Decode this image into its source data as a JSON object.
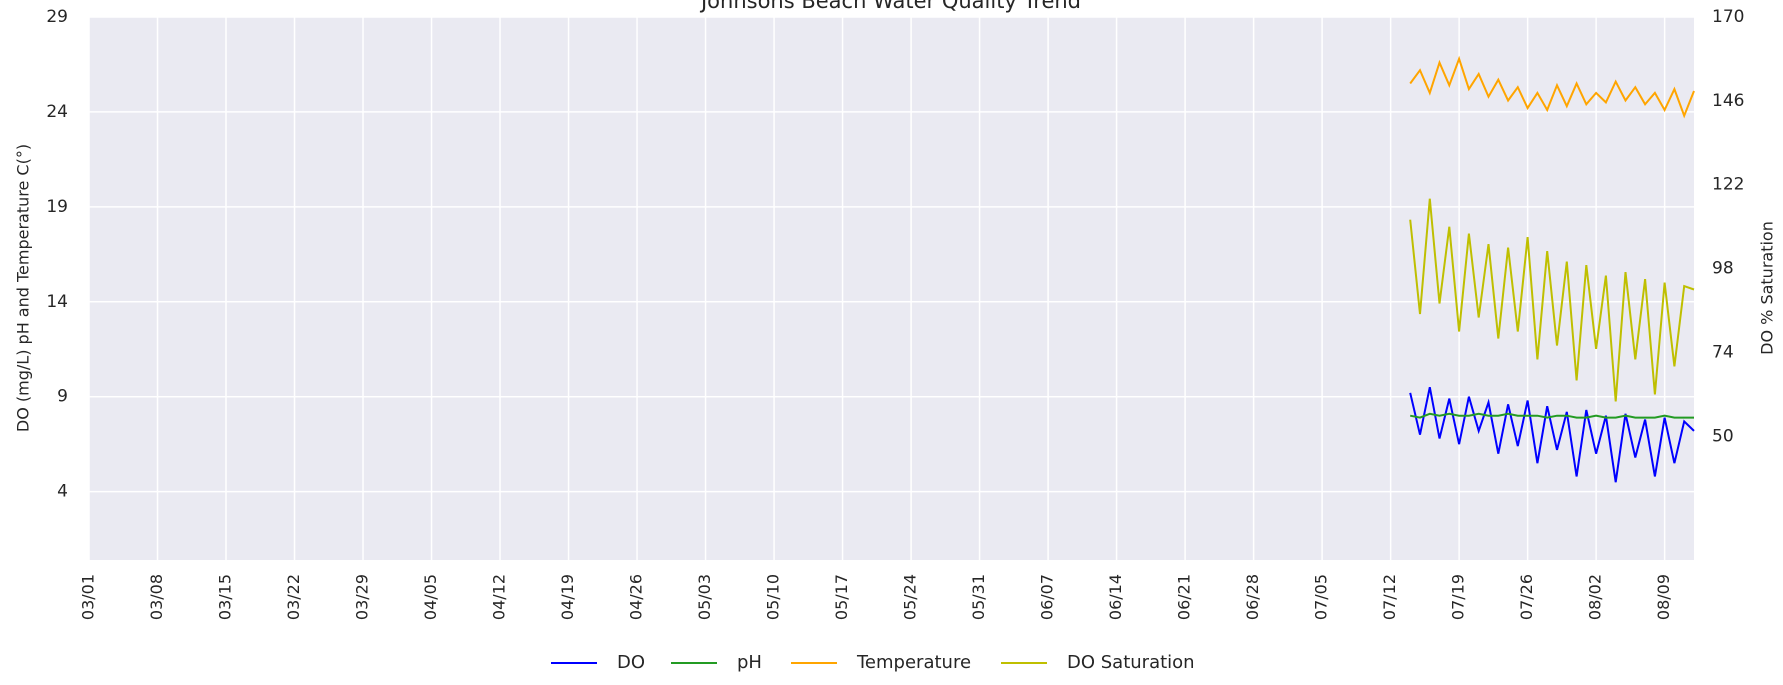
{
  "chart_data": {
    "type": "line",
    "title": "Johnsons Beach Water Quality Trend",
    "ylabel": "DO (mg/L) pH and Temperature C(°)",
    "y2label": "DO % Saturation",
    "x": [
      "07/14",
      "07/15",
      "07/16",
      "07/17",
      "07/18",
      "07/19",
      "07/20",
      "07/21",
      "07/22",
      "07/23",
      "07/24",
      "07/25",
      "07/26",
      "07/27",
      "07/28",
      "07/29",
      "07/30",
      "07/31",
      "08/01",
      "08/02",
      "08/03",
      "08/04",
      "08/05",
      "08/06",
      "08/07",
      "08/08",
      "08/09",
      "08/10",
      "08/11",
      "08/12"
    ],
    "xlim": [
      "03/01",
      "08/12"
    ],
    "xticks": [
      "03/01",
      "03/08",
      "03/15",
      "03/22",
      "03/29",
      "04/05",
      "04/12",
      "04/19",
      "04/26",
      "05/03",
      "05/10",
      "05/17",
      "05/24",
      "05/31",
      "06/07",
      "06/14",
      "06/21",
      "06/28",
      "07/05",
      "07/12",
      "07/19",
      "07/26",
      "08/02",
      "08/09"
    ],
    "ylim": [
      0.4,
      29
    ],
    "yticks": [
      4,
      9,
      14,
      19,
      24,
      29
    ],
    "y2lim": [
      14.6,
      170
    ],
    "y2ticks": [
      50,
      74,
      98,
      122,
      146,
      170
    ],
    "grid": true,
    "legend": "bottom",
    "series": [
      {
        "name": "DO",
        "color": "#0000ff",
        "values": [
          9.2,
          7.0,
          9.5,
          6.8,
          8.9,
          6.5,
          9.0,
          7.2,
          8.7,
          6.0,
          8.6,
          6.4,
          8.8,
          5.5,
          8.5,
          6.2,
          8.2,
          4.8,
          8.3,
          6.0,
          8.0,
          4.5,
          8.1,
          5.8,
          7.8,
          4.8,
          7.9,
          5.5,
          7.7,
          7.2
        ]
      },
      {
        "name": "pH",
        "color": "#239b23",
        "values": [
          8.0,
          7.9,
          8.1,
          8.0,
          8.1,
          8.0,
          8.0,
          8.1,
          8.0,
          8.0,
          8.1,
          8.0,
          8.0,
          8.0,
          7.9,
          8.0,
          8.0,
          7.9,
          7.9,
          8.0,
          7.9,
          7.9,
          8.0,
          7.9,
          7.9,
          7.9,
          8.0,
          7.9,
          7.9,
          7.9
        ]
      },
      {
        "name": "Temperature",
        "color": "#ffa500",
        "values": [
          25.5,
          26.2,
          25.0,
          26.6,
          25.4,
          26.8,
          25.2,
          26.0,
          24.8,
          25.7,
          24.6,
          25.3,
          24.2,
          25.0,
          24.1,
          25.4,
          24.3,
          25.5,
          24.4,
          25.0,
          24.5,
          25.6,
          24.6,
          25.3,
          24.4,
          25.0,
          24.1,
          25.2,
          23.8,
          25.1
        ]
      },
      {
        "name": "DO Saturation",
        "color": "#bfbf00",
        "axis": "y2",
        "values": [
          112,
          85,
          118,
          88,
          110,
          80,
          108,
          84,
          105,
          78,
          104,
          80,
          107,
          72,
          103,
          76,
          100,
          66,
          99,
          75,
          96,
          60,
          97,
          72,
          95,
          62,
          94,
          70,
          93,
          92
        ]
      }
    ]
  }
}
